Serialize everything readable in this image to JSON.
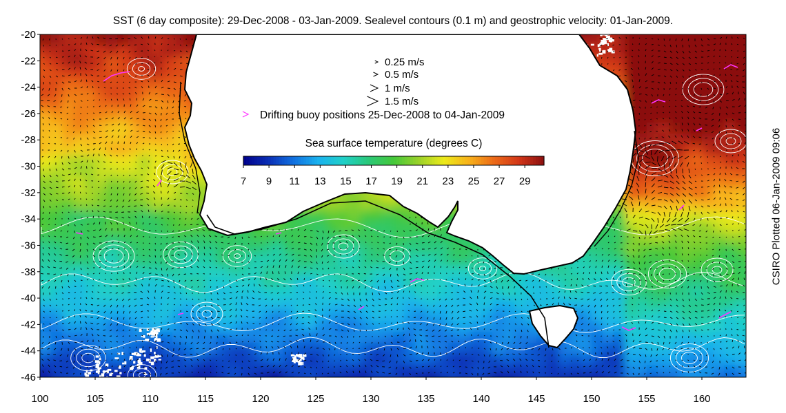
{
  "title": "SST (6 day composite): 29-Dec-2008 - 03-Jan-2009. Sealevel contours (0.1 m) and geostrophic velocity: 01-Jan-2009.",
  "side_note": "CSIRO Plotted 06-Jan-2009 09:06",
  "axes": {
    "x_ticks": [
      "100",
      "105",
      "110",
      "115",
      "120",
      "125",
      "130",
      "135",
      "140",
      "145",
      "150",
      "155",
      "160"
    ],
    "y_ticks": [
      "-20",
      "-22",
      "-24",
      "-26",
      "-28",
      "-30",
      "-32",
      "-34",
      "-36",
      "-38",
      "-40",
      "-42",
      "-44",
      "-46"
    ],
    "x_range": [
      100,
      164
    ],
    "y_range": [
      -46,
      -20
    ]
  },
  "legend": {
    "vectors": [
      {
        "label": "0.25 m/s",
        "speed": 0.25
      },
      {
        "label": "0.5 m/s",
        "speed": 0.5
      },
      {
        "label": "1 m/s",
        "speed": 1
      },
      {
        "label": "1.5 m/s",
        "speed": 1.5
      }
    ],
    "buoy_label": "Drifting buoy positions 25-Dec-2008 to 04-Jan-2009",
    "buoy_color": "#ff33ff"
  },
  "colorbar": {
    "title": "Sea surface temperature (degrees C)",
    "ticks": [
      "7",
      "9",
      "11",
      "13",
      "15",
      "17",
      "19",
      "21",
      "23",
      "25",
      "27",
      "29"
    ],
    "range": [
      7,
      30.5
    ],
    "colors": [
      "#00008b",
      "#0a2fb5",
      "#1170e0",
      "#1ab2ee",
      "#20d0c8",
      "#2ac878",
      "#45c83a",
      "#9ad22a",
      "#ecea1a",
      "#f8b21a",
      "#ec6a18",
      "#d23618",
      "#8b1010"
    ]
  },
  "colors": {
    "land": "#ffffff",
    "coastline": "#000000",
    "contours": "#ffffff",
    "vectors": "#000000",
    "cloud": "#ffffff"
  }
}
